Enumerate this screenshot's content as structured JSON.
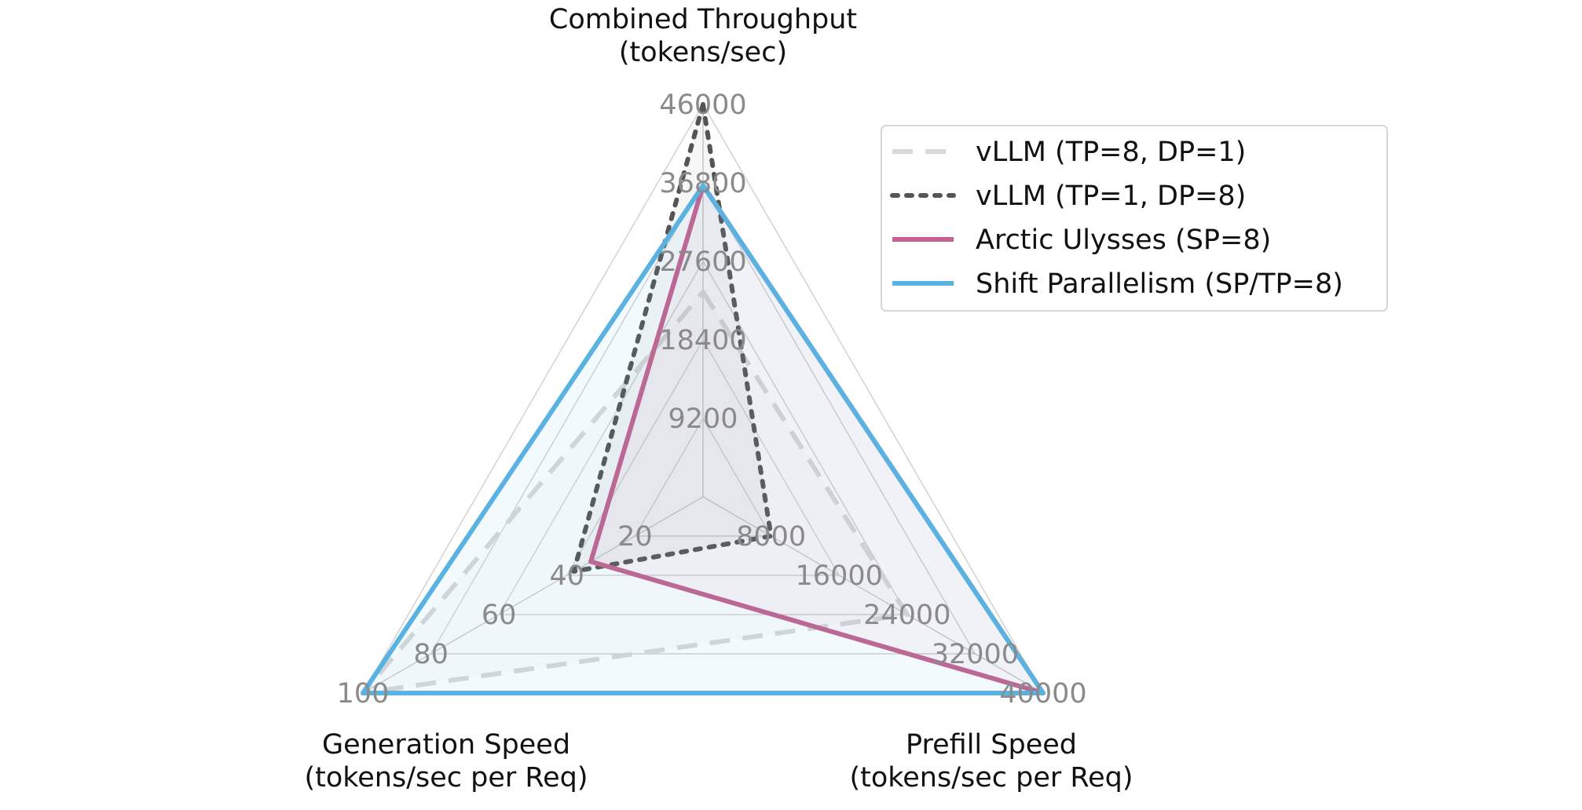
{
  "chart_data": {
    "type": "radar",
    "axes": [
      {
        "key": "throughput",
        "title": [
          "Combined Throughput",
          "(tokens/sec)"
        ],
        "max": 46000,
        "ticks": [
          9200,
          18400,
          27600,
          36800,
          46000
        ],
        "tick_labels": [
          "9200",
          "18400",
          "27600",
          "36800",
          "46000"
        ]
      },
      {
        "key": "prefill",
        "title": [
          "Prefill Speed",
          "(tokens/sec per Req)"
        ],
        "max": 40000,
        "ticks": [
          8000,
          16000,
          24000,
          32000,
          40000
        ],
        "tick_labels": [
          "8000",
          "16000",
          "24000",
          "32000",
          "40000"
        ]
      },
      {
        "key": "generation",
        "title": [
          "Generation Speed",
          "(tokens/sec per Req)"
        ],
        "max": 100,
        "ticks": [
          20,
          40,
          60,
          80,
          100
        ],
        "tick_labels": [
          "20",
          "40",
          "60",
          "80",
          "100"
        ]
      }
    ],
    "series": [
      {
        "name": "vLLM (TP=8, DP=1)",
        "values": [
          24000,
          24000,
          100
        ],
        "color": "#d9d9d9",
        "style": "dashed",
        "fill": "#e8e8e8",
        "fill_opacity": 0.12
      },
      {
        "name": "vLLM (TP=1, DP=8)",
        "values": [
          46000,
          8000,
          38
        ],
        "color": "#555555",
        "style": "dotted",
        "fill": "#888888",
        "fill_opacity": 0.08
      },
      {
        "name": "Arctic Ulysses (SP=8)",
        "values": [
          36500,
          40000,
          33
        ],
        "color": "#c46292",
        "style": "solid",
        "fill": "#c46292",
        "fill_opacity": 0.05
      },
      {
        "name": "Shift Parallelism (SP/TP=8)",
        "values": [
          36500,
          40000,
          100
        ],
        "color": "#59b2e0",
        "style": "solid",
        "fill": "#59b2e0",
        "fill_opacity": 0.07
      }
    ],
    "grid": true,
    "legend_position": "top-right"
  }
}
